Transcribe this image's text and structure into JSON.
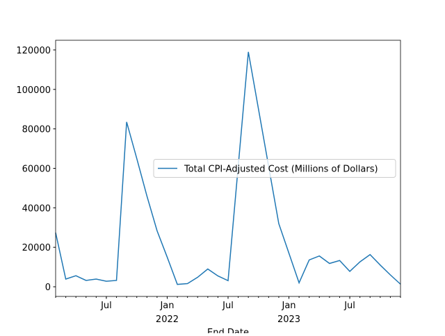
{
  "chart_data": {
    "type": "line",
    "x": [
      "2021-02",
      "2021-03",
      "2021-04",
      "2021-05",
      "2021-06",
      "2021-07",
      "2021-08",
      "2021-09",
      "2021-10",
      "2021-11",
      "2021-12",
      "2022-01",
      "2022-02",
      "2022-03",
      "2022-04",
      "2022-05",
      "2022-06",
      "2022-07",
      "2022-08",
      "2022-09",
      "2022-10",
      "2022-11",
      "2022-12",
      "2023-01",
      "2023-02",
      "2023-03",
      "2023-04",
      "2023-05",
      "2023-06",
      "2023-07",
      "2023-08",
      "2023-09",
      "2023-10",
      "2023-11",
      "2023-12"
    ],
    "series": [
      {
        "name": "Total CPI-Adjusted Cost (Millions of Dollars)",
        "color": "#1f77b4",
        "values": [
          27400,
          3900,
          5600,
          3200,
          3900,
          2800,
          3200,
          83500,
          65000,
          46000,
          28400,
          15000,
          1200,
          1600,
          4800,
          9000,
          5500,
          3100,
          61000,
          119000,
          90000,
          61000,
          32000,
          17000,
          2000,
          13600,
          15600,
          11800,
          13300,
          7800,
          12600,
          16300,
          11000,
          6000,
          1300
        ]
      }
    ],
    "xlabel": "End Date",
    "xlim": [
      "2021-02",
      "2023-12"
    ],
    "xticks": [
      {
        "value": "2021-07",
        "label": "Jul"
      },
      {
        "value": "2022-01",
        "label": "Jan",
        "year": "2022"
      },
      {
        "value": "2022-07",
        "label": "Jul"
      },
      {
        "value": "2023-01",
        "label": "Jan",
        "year": "2023"
      },
      {
        "value": "2023-07",
        "label": "Jul"
      }
    ],
    "ylim": [
      -4900,
      124900
    ],
    "yticks": [
      0,
      20000,
      40000,
      60000,
      80000,
      100000,
      120000
    ],
    "legend": "center right"
  }
}
